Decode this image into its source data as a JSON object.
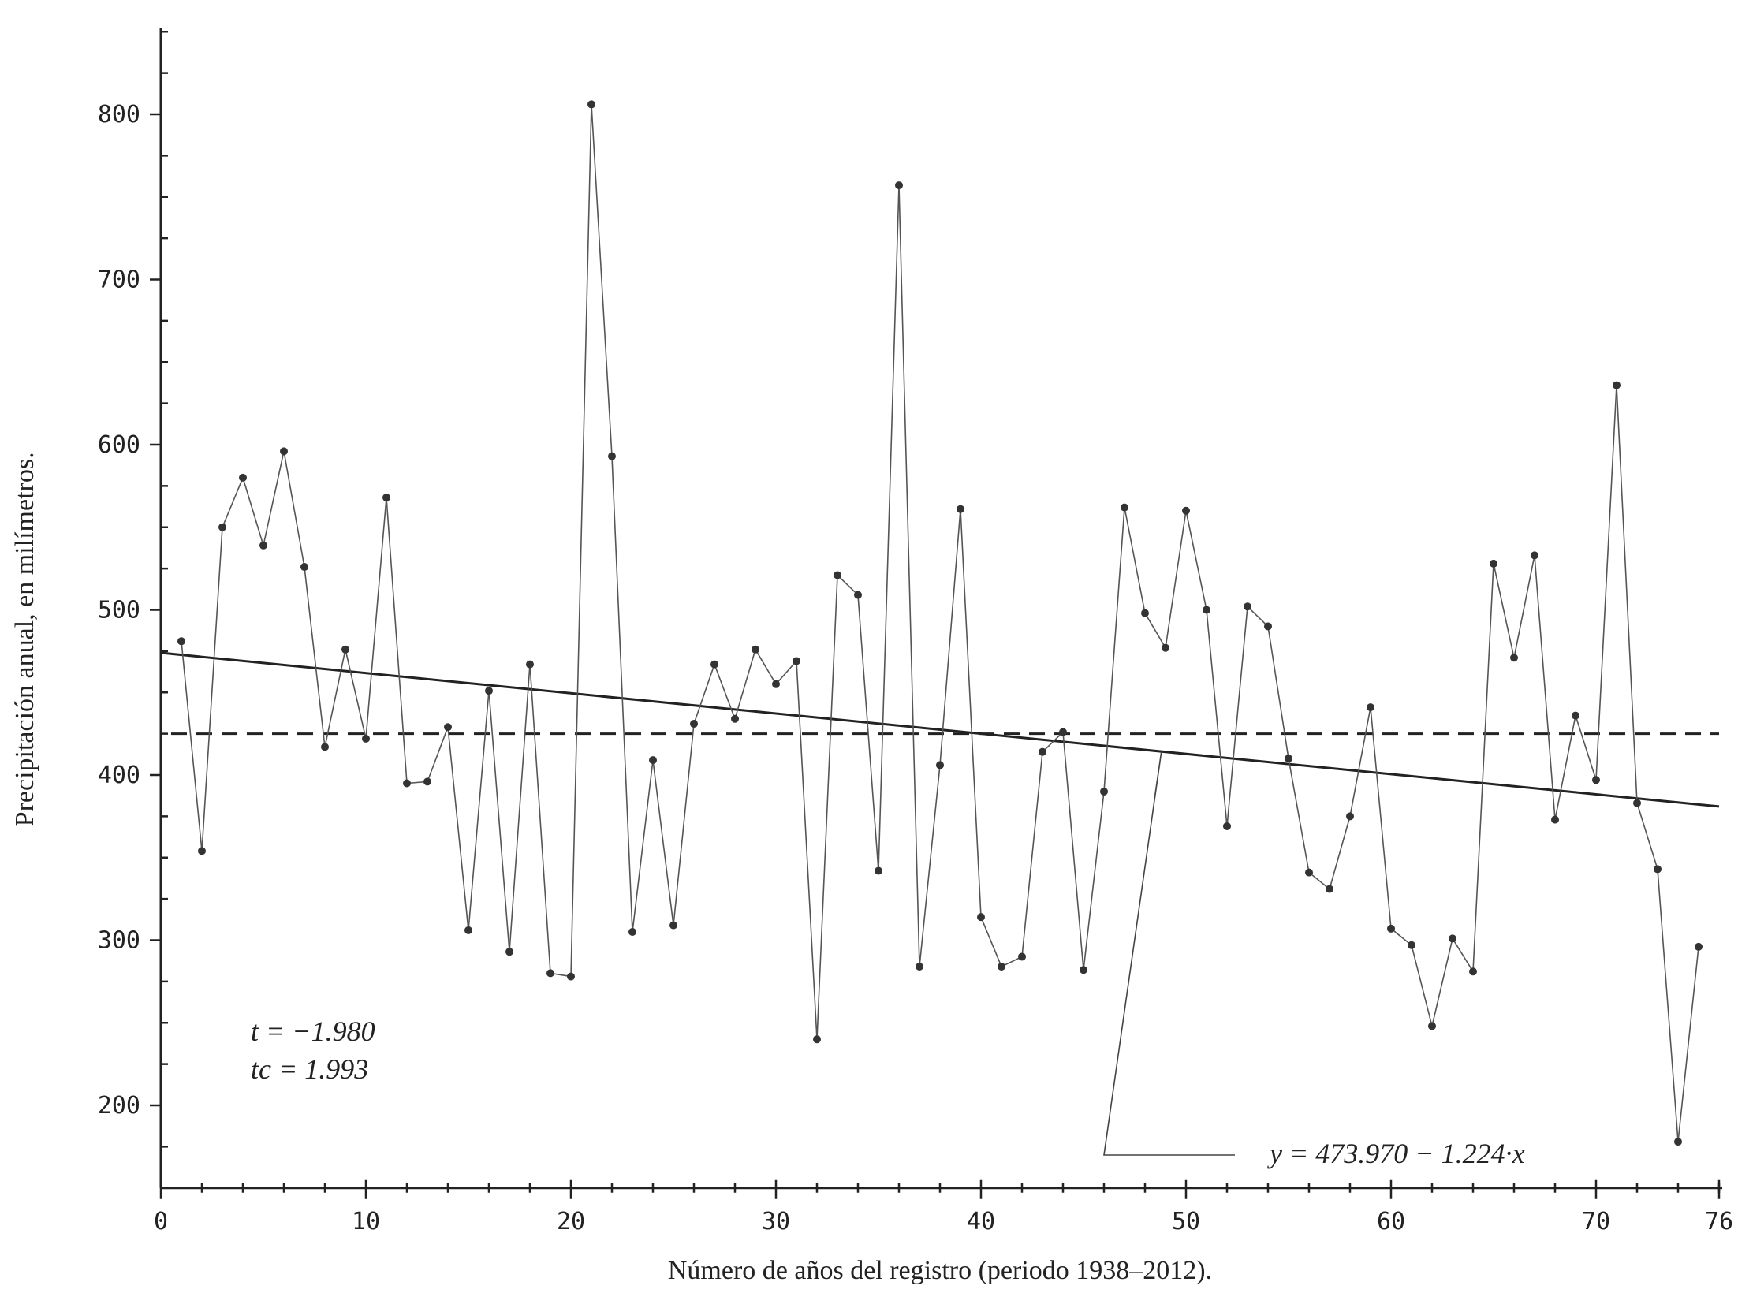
{
  "chart_data": {
    "type": "line",
    "xlabel": "Número de años del registro (periodo 1938–2012).",
    "ylabel": "Precipitación anual, en milímetros.",
    "xlim": [
      0,
      76
    ],
    "ylim": [
      150,
      850
    ],
    "x_ticks": [
      "0",
      "10",
      "20",
      "30",
      "40",
      "50",
      "60",
      "70",
      "76"
    ],
    "x_tick_values": [
      0,
      10,
      20,
      30,
      40,
      50,
      60,
      70,
      76
    ],
    "y_ticks": [
      "200",
      "300",
      "400",
      "500",
      "600",
      "700",
      "800"
    ],
    "y_tick_values": [
      200,
      300,
      400,
      500,
      600,
      700,
      800
    ],
    "x": [
      1,
      2,
      3,
      4,
      5,
      6,
      7,
      8,
      9,
      10,
      11,
      12,
      13,
      14,
      15,
      16,
      17,
      18,
      19,
      20,
      21,
      22,
      23,
      24,
      25,
      26,
      27,
      28,
      29,
      30,
      31,
      32,
      33,
      34,
      35,
      36,
      37,
      38,
      39,
      40,
      41,
      42,
      43,
      44,
      45,
      46,
      47,
      48,
      49,
      50,
      51,
      52,
      53,
      54,
      55,
      56,
      57,
      58,
      59,
      60,
      61,
      62,
      63,
      64,
      65,
      66,
      67,
      68,
      69,
      70,
      71,
      72,
      73,
      74,
      75
    ],
    "series": [
      {
        "values": [
          481,
          354,
          550,
          580,
          539,
          596,
          526,
          417,
          476,
          422,
          568,
          395,
          396,
          429,
          306,
          451,
          293,
          467,
          280,
          278,
          806,
          593,
          305,
          409,
          309,
          431,
          467,
          434,
          476,
          455,
          469,
          240,
          521,
          509,
          342,
          757,
          284,
          406,
          561,
          314,
          284,
          290,
          414,
          426,
          282,
          390,
          562,
          498,
          477,
          560,
          500,
          369,
          502,
          490,
          410,
          341,
          331,
          375,
          441,
          307,
          297,
          248,
          301,
          281,
          528,
          471,
          533,
          373,
          436,
          397,
          636,
          383,
          343,
          178,
          296
        ]
      }
    ],
    "trend_line": {
      "intercept": 473.97,
      "slope": -1.224,
      "style": "solid"
    },
    "mean_line": {
      "value": 425,
      "style": "dashed"
    },
    "grid": false,
    "annotations": {
      "t_label": "t = −1.980",
      "tc_label": "tc = 1.993",
      "equation": "y = 473.970 − 1.224·x"
    }
  }
}
